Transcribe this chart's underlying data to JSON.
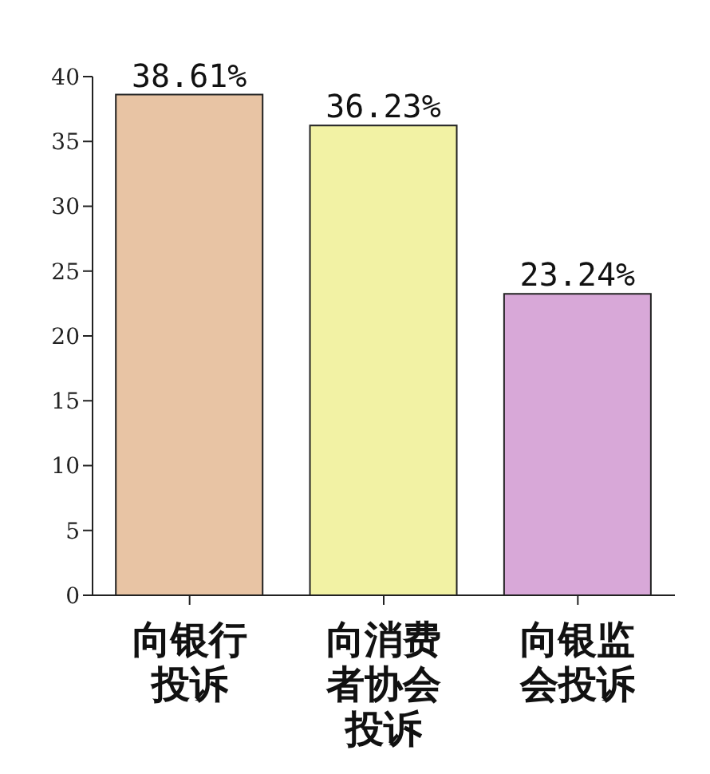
{
  "chart_data": {
    "type": "bar",
    "categories": [
      "向银行投诉",
      "向消费者协会投诉",
      "向银监会投诉"
    ],
    "values": [
      38.61,
      36.23,
      23.24
    ],
    "colors": [
      "#e8c4a4",
      "#f2f2a4",
      "#d8a8d8"
    ],
    "value_labels": [
      "38.61%",
      "36.23%",
      "23.24%"
    ],
    "ylim": [
      0,
      40
    ],
    "yticks": [
      0,
      5,
      10,
      15,
      20,
      25,
      30,
      35,
      40
    ],
    "grid": false
  }
}
